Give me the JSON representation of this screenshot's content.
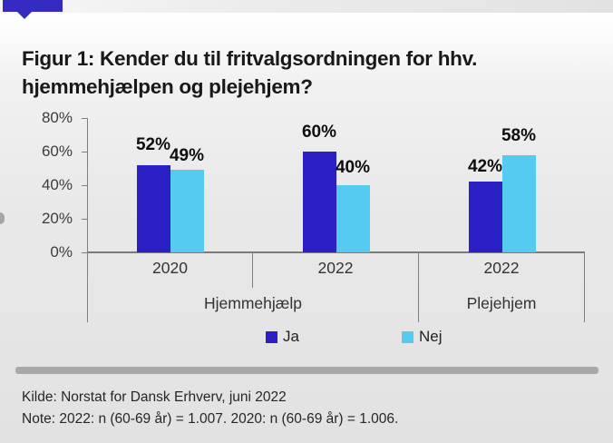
{
  "page": {
    "title": "Figur 1: Kender du til fritvalgsordningen for hhv. hjemmehjælpen og plejehjem?",
    "source_line": "Kilde: Norstat for Dansk Erhverv, juni 2022",
    "note_line": "Note: 2022: n (60-69 år) = 1.007. 2020: n (60-69 år) = 1.006."
  },
  "colors": {
    "ja_bar": "#2B20C6",
    "nej_bar": "#55CBF2",
    "tab_blue": "#352BC3",
    "axis_line": "#7f7f7f",
    "axis_text": "#3c3c3c",
    "divider_bar_gray": "#a9a9a9"
  },
  "chart_data": {
    "type": "bar",
    "title": "Figur 1: Kender du til fritvalgsordningen for hhv. hjemmehjælpen og plejehjem?",
    "categories": [
      "2020",
      "2022",
      "2022"
    ],
    "category_groups": [
      {
        "label": "Hjemmehjælp",
        "span": 2
      },
      {
        "label": "Plejehjem",
        "span": 1
      }
    ],
    "series": [
      {
        "name": "Ja",
        "color": "#2B20C6",
        "values": [
          52,
          60,
          42
        ]
      },
      {
        "name": "Nej",
        "color": "#55CBF2",
        "values": [
          49,
          40,
          58
        ]
      }
    ],
    "value_label_format": "{v}%",
    "y_ticks": [
      "80%",
      "60%",
      "40%",
      "20%",
      "0%"
    ],
    "ylim": [
      0,
      80
    ],
    "grid": false,
    "legend_position": "bottom",
    "label_gaps": [
      [
        14,
        7
      ],
      [
        13,
        11
      ],
      [
        8,
        13
      ]
    ]
  }
}
